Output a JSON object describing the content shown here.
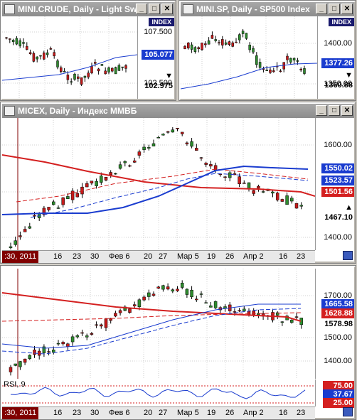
{
  "win1": {
    "title": "MINI.CRUDE, Daily - Light Sw",
    "index_label": "INDEX",
    "ticks": [
      "107.500",
      "102.500"
    ],
    "tags": [
      {
        "value": "105.077",
        "color": "#1a3ccf"
      },
      {
        "value": "▼ 102.975",
        "color": "#ffffff"
      }
    ]
  },
  "win2": {
    "title": "MINI.SP, Daily - SP500 Index",
    "index_label": "INDEX",
    "ticks": [
      "1400.00",
      "1350.00"
    ],
    "tags": [
      {
        "value": "1377.26",
        "color": "#1a3ccf"
      },
      {
        "value": "▼ 1360.88",
        "color": "#ffffff"
      }
    ]
  },
  "win3": {
    "title": "MICEX, Daily - Индекс ММВБ",
    "ticks": [
      "1600.00",
      "1500.00",
      "1400.00"
    ],
    "tags": [
      {
        "value": "1550.02",
        "color": "#1a3ccf"
      },
      {
        "value": "1523.57",
        "color": "#1a3ccf"
      },
      {
        "value": "1501.56",
        "color": "#d42020"
      },
      {
        "value": "▲ 1467.10",
        "color": "#ffffff"
      }
    ],
    "dates": [
      ":30, 2011",
      "16",
      "23",
      "30",
      "Фев 6",
      "20",
      "27",
      "Мар 5",
      "19",
      "26",
      "Апр 2",
      "16",
      "23"
    ]
  },
  "win4": {
    "ticks": [
      "1700.00",
      "1500.00",
      "1400.00"
    ],
    "tags": [
      {
        "value": "1665.58",
        "color": "#1a3ccf"
      },
      {
        "value": "1628.88",
        "color": "#d42020"
      },
      {
        "value": "1578.98",
        "color": "#ffffff"
      }
    ],
    "rsi_label": "RSI, 9",
    "rsi_tags": [
      {
        "value": "75.00",
        "color": "#d42020"
      },
      {
        "value": "37.67",
        "color": "#1a3ccf"
      },
      {
        "value": "25.00",
        "color": "#d42020"
      }
    ],
    "dates": [
      ":30, 2011",
      "16",
      "23",
      "30",
      "Фев 6",
      "20",
      "27",
      "Мар 5",
      "19",
      "26",
      "Апр 2",
      "16",
      "23"
    ]
  },
  "window_buttons": {
    "minimize": "_",
    "maximize": "□",
    "close": "✕"
  }
}
